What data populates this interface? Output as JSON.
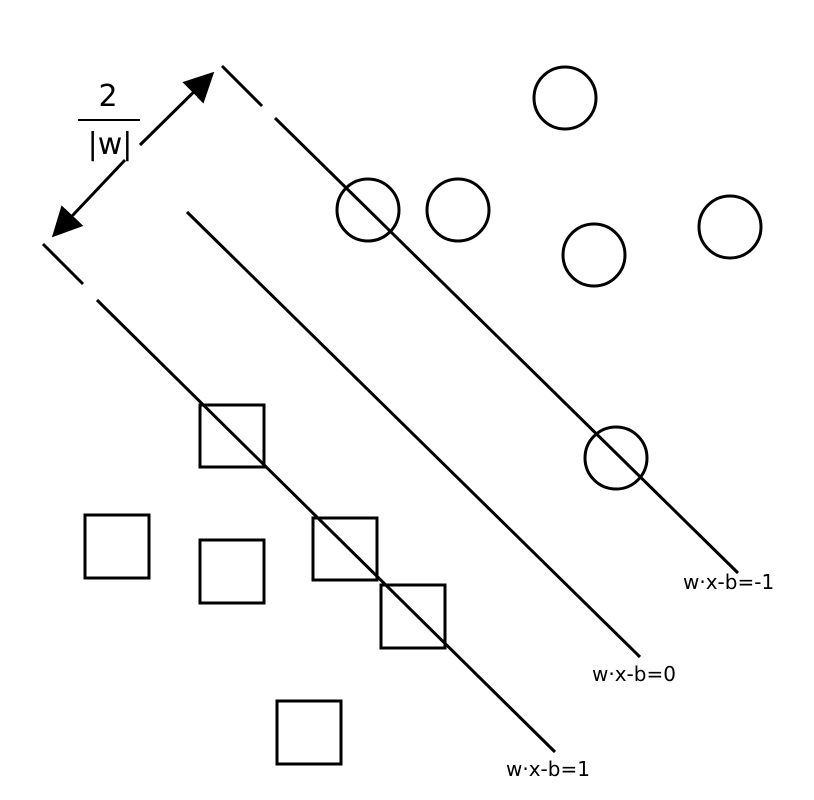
{
  "labels": {
    "upper_hyperplane": "w·x-b=-1",
    "decision_boundary": "w·x-b=0",
    "lower_hyperplane": "w·x-b=1"
  },
  "margin": {
    "numerator": "2",
    "denominator": "|w|"
  },
  "colors": {
    "ink": "#000000",
    "background": "#ffffff"
  }
}
